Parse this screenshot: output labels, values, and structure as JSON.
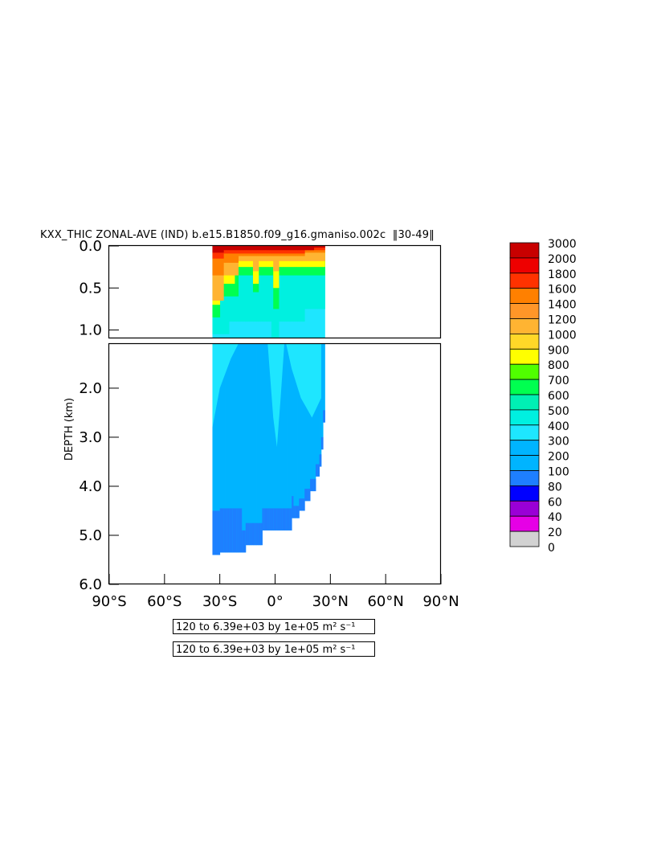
{
  "title": {
    "main": "KXX_THIC ZONAL-AVE (IND) b.e15.B1850.f09_g16.gmaniso.002c",
    "years": "30-49"
  },
  "info_lines": [
    "120 to 6.39e+03 by 1e+05 m² s⁻¹",
    "120 to 6.39e+03 by 1e+05 m² s⁻¹"
  ],
  "colors": {
    "c0": "#6e6e6e",
    "c20": "#d2d2d2",
    "c40": "#e600e6",
    "c60": "#9a00d6",
    "c80": "#0000ff",
    "c100": "#1e7fff",
    "c200": "#00b4ff",
    "c300": "#1ee6ff",
    "c400": "#00f0e0",
    "c500": "#00f0b4",
    "c600": "#00ff50",
    "c700": "#50ff00",
    "c800": "#ffff00",
    "c900": "#ffd828",
    "c1000": "#ffb432",
    "c1200": "#ff9628",
    "c1400": "#ff8000",
    "c1600": "#ff3200",
    "c1800": "#ee0000",
    "c2000": "#c80000"
  },
  "chart_data": {
    "type": "heatmap",
    "ylabel": "DEPTH (km)",
    "xlim": [
      -90,
      90
    ],
    "x_ticks": [
      "90°S",
      "60°S",
      "30°S",
      "0°",
      "30°N",
      "60°N",
      "90°N"
    ],
    "x_tick_values": [
      -90,
      -60,
      -30,
      0,
      30,
      60,
      90
    ],
    "upper_panel": {
      "ylim": [
        0,
        1.1
      ],
      "y_ticks": [
        "0.0",
        "0.5",
        "1.0"
      ],
      "y_tick_values": [
        0,
        0.5,
        1.0
      ]
    },
    "lower_panel": {
      "ylim": [
        1.1,
        6.0
      ],
      "y_ticks": [
        "2.0",
        "3.0",
        "4.0",
        "5.0",
        "6.0"
      ],
      "y_tick_values": [
        2,
        3,
        4,
        5,
        6
      ]
    },
    "colorbar_levels": [
      "3000",
      "2000",
      "1800",
      "1600",
      "1400",
      "1200",
      "1000",
      "900",
      "800",
      "700",
      "600",
      "500",
      "400",
      "300",
      "200",
      "100",
      "80",
      "60",
      "40",
      "20",
      "0"
    ],
    "colorbar_colors": [
      "#c80000",
      "#ee0000",
      "#ff3200",
      "#ff8000",
      "#ff9628",
      "#ffb432",
      "#ffd828",
      "#ffff00",
      "#50ff00",
      "#00ff50",
      "#00f0b4",
      "#00f0e0",
      "#1ee6ff",
      "#00b4ff",
      "#00b4ff",
      "#1e7fff",
      "#0000ff",
      "#9a00d6",
      "#e600e6",
      "#d2d2d2",
      "#6e6e6e"
    ],
    "field_summary": {
      "lat_range": [
        -34,
        27
      ],
      "bottom_depth_km": [
        [
          -34,
          5.4
        ],
        [
          -33,
          5.4
        ],
        [
          -31,
          5.35
        ],
        [
          -28,
          5.35
        ],
        [
          -25,
          5.35
        ],
        [
          -22,
          5.35
        ],
        [
          -19,
          5.35
        ],
        [
          -17,
          5.2
        ],
        [
          -10,
          5.2
        ],
        [
          -8,
          4.9
        ],
        [
          0,
          4.9
        ],
        [
          3,
          4.9
        ],
        [
          8,
          4.65
        ],
        [
          12,
          4.5
        ],
        [
          15,
          4.3
        ],
        [
          18,
          4.1
        ],
        [
          21,
          3.8
        ],
        [
          23,
          3.6
        ],
        [
          24,
          3.25
        ],
        [
          25,
          2.7
        ],
        [
          26,
          1.95
        ],
        [
          27,
          1.0
        ]
      ]
    }
  }
}
